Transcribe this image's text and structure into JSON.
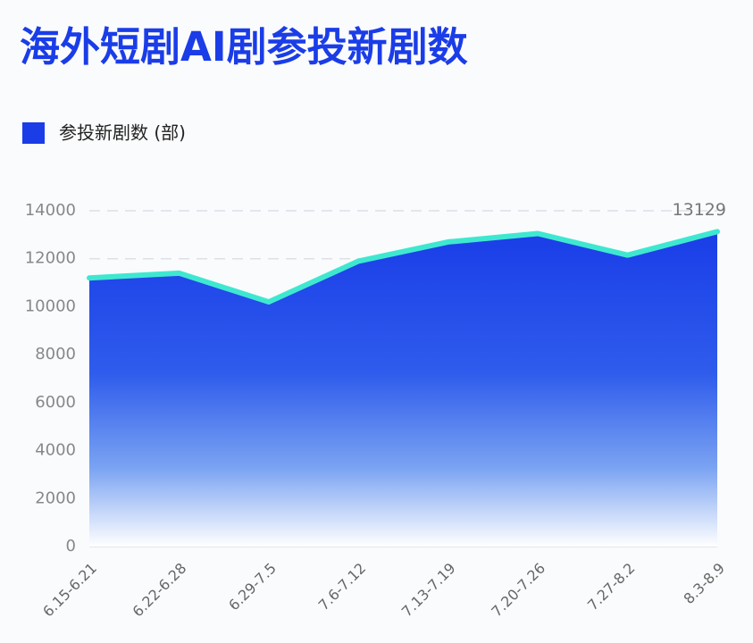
{
  "chart_data": {
    "type": "area",
    "title": "海外短剧AI剧参投新剧数",
    "categories": [
      "6.15-6.21",
      "6.22-6.28",
      "6.29-7.5",
      "7.6-7.12",
      "7.13-7.19",
      "7.20-7.26",
      "7.27-8.2",
      "8.3-8.9"
    ],
    "series": [
      {
        "name": "参投新剧数 (部)",
        "color": "#1a3de8",
        "values": [
          11200,
          11400,
          10200,
          11900,
          12700,
          13050,
          12150,
          13129
        ],
        "value_labels": [
          null,
          null,
          null,
          null,
          null,
          null,
          null,
          "13129"
        ]
      }
    ],
    "line_color": "#3ee8d0",
    "ylim": [
      0,
      14000
    ],
    "yticks": [
      0,
      2000,
      4000,
      6000,
      8000,
      10000,
      12000,
      14000
    ],
    "grid": true,
    "legend": "top-left"
  }
}
